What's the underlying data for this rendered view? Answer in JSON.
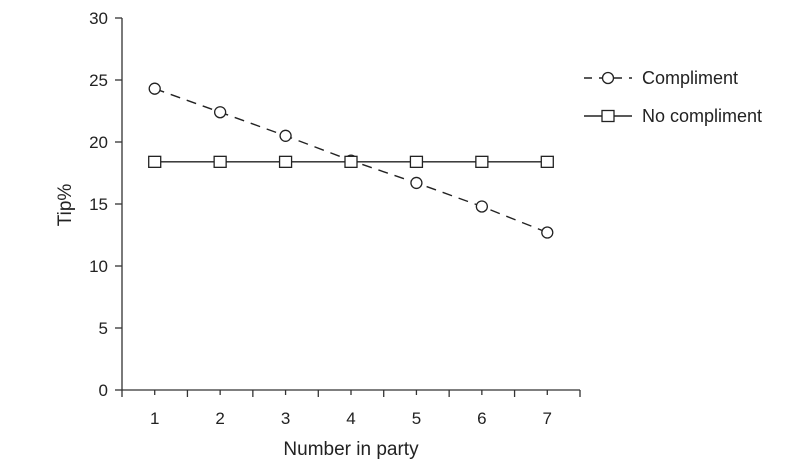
{
  "chart_data": {
    "type": "line",
    "title": "",
    "xlabel": "Number in party",
    "ylabel": "Tip%",
    "x": [
      1,
      2,
      3,
      4,
      5,
      6,
      7
    ],
    "xlim": [
      0.5,
      7.5
    ],
    "ylim": [
      0,
      30
    ],
    "x_ticks": [
      1,
      2,
      3,
      4,
      5,
      6,
      7
    ],
    "y_ticks": [
      0,
      5,
      10,
      15,
      20,
      25,
      30
    ],
    "grid": false,
    "legend_position": "top-right",
    "series": [
      {
        "name": "Compliment",
        "values": [
          24.3,
          22.4,
          20.5,
          18.5,
          16.7,
          14.8,
          12.7
        ],
        "line_style": "dashed",
        "marker": "circle",
        "color": "#222222"
      },
      {
        "name": "No compliment",
        "values": [
          18.4,
          18.4,
          18.4,
          18.4,
          18.4,
          18.4,
          18.4
        ],
        "line_style": "solid",
        "marker": "square",
        "color": "#222222"
      }
    ]
  }
}
